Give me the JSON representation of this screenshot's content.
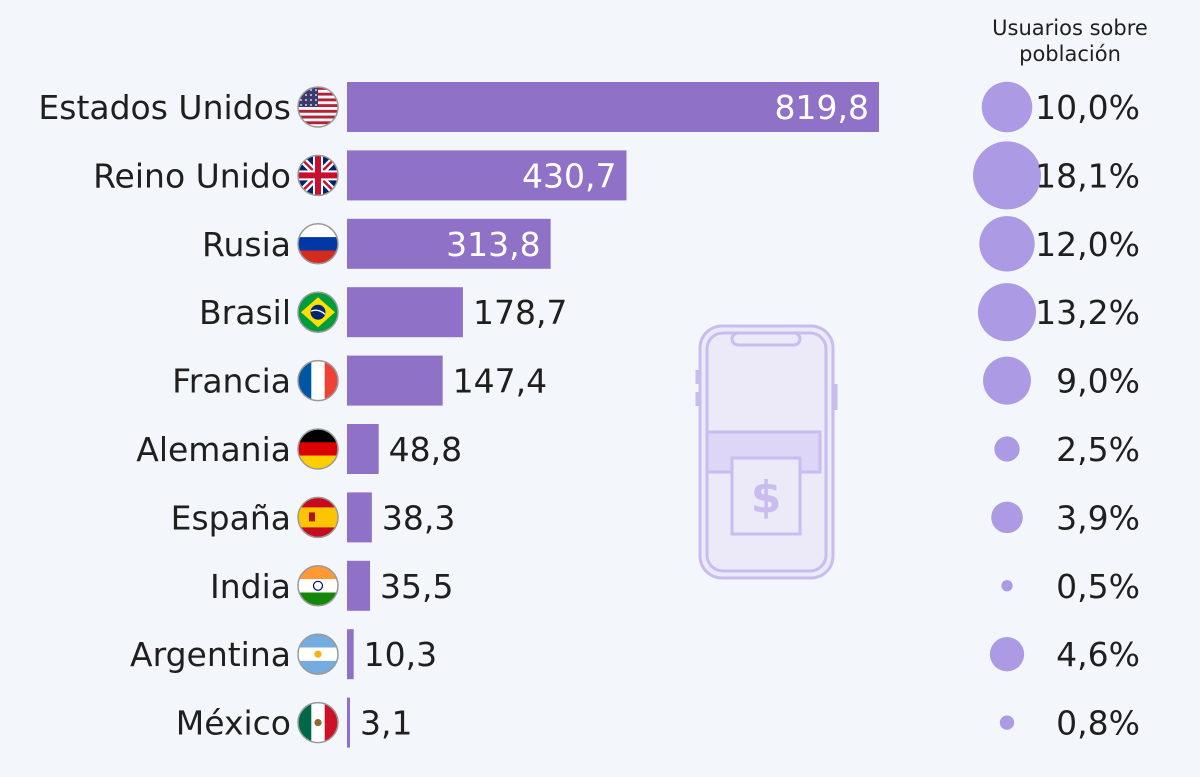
{
  "chart_data": {
    "type": "bar",
    "orientation": "horizontal",
    "categories": [
      "Estados Unidos",
      "Reino Unido",
      "Rusia",
      "Brasil",
      "Francia",
      "Alemania",
      "España",
      "India",
      "Argentina",
      "México"
    ],
    "values": [
      819.8,
      430.7,
      313.8,
      178.7,
      147.4,
      48.8,
      38.3,
      35.5,
      10.3,
      3.1
    ],
    "value_labels": [
      "819,8",
      "430,7",
      "313,8",
      "178,7",
      "147,4",
      "48,8",
      "38,3",
      "35,5",
      "10,3",
      "3,1"
    ],
    "flags": [
      "us-flag-icon",
      "uk-flag-icon",
      "russia-flag-icon",
      "brazil-flag-icon",
      "france-flag-icon",
      "germany-flag-icon",
      "spain-flag-icon",
      "india-flag-icon",
      "argentina-flag-icon",
      "mexico-flag-icon"
    ],
    "xlim": [
      0,
      819.8
    ],
    "grid": false,
    "bar_color": "#9071c8",
    "bubble_series": {
      "title": "Usuarios sobre población",
      "values": [
        10.0,
        18.1,
        12.0,
        13.2,
        9.0,
        2.5,
        3.9,
        0.5,
        4.6,
        0.8
      ],
      "labels": [
        "10,0%",
        "18,1%",
        "12,0%",
        "13,2%",
        "9,0%",
        "2,5%",
        "3,9%",
        "0,5%",
        "4,6%",
        "0,8%"
      ],
      "color": "#ac9be4"
    },
    "decoration_icon": "smartphone-payment-icon"
  }
}
